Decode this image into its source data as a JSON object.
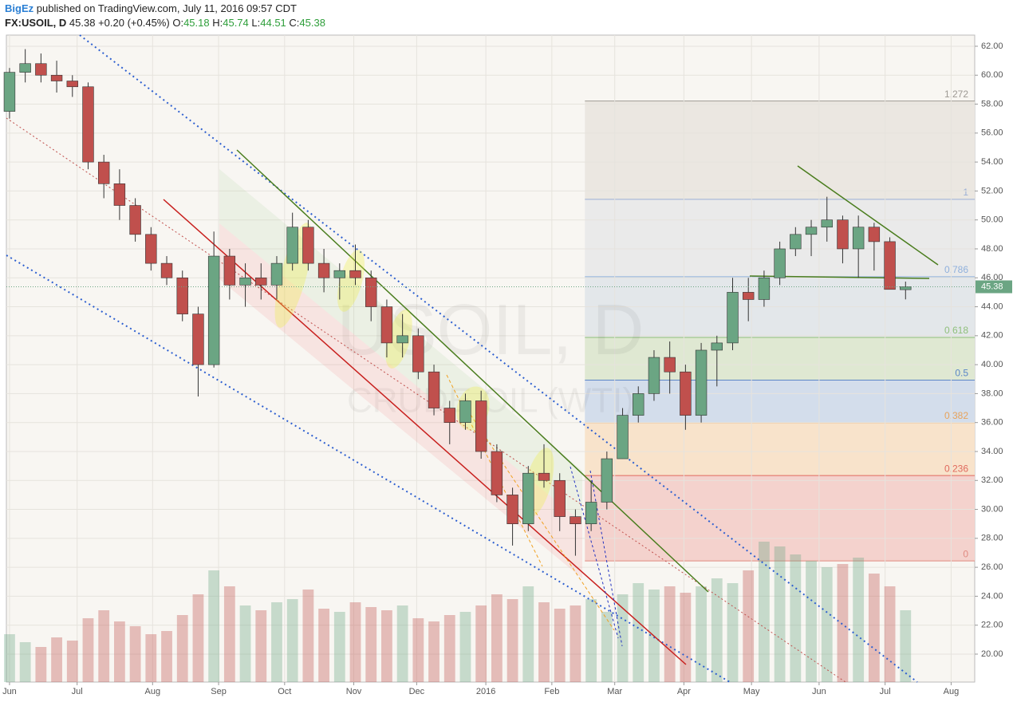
{
  "header": {
    "author": "BigEz",
    "published": "published on TradingView.com, July 11, 2016 09:57 CDT",
    "symbol": "FX:USOIL, D",
    "change": "+0.20 (+0.45%)",
    "o_label": "O:",
    "h_label": "H:",
    "l_label": "L:",
    "c_label": "C:"
  },
  "chart_data": {
    "type": "candlestick",
    "watermark": "USOIL, D",
    "watermark_sub": "CRUDE OIL (WTI)",
    "up_color": "#6ba583",
    "down_color": "#c0504d",
    "open": [
      57.5,
      60.2,
      60.8,
      60,
      59.6,
      59.2,
      54,
      52.5,
      51,
      49,
      47,
      46,
      43.5,
      40,
      47.5,
      45.5,
      46,
      45.5,
      47,
      49.5,
      47,
      46,
      46.5,
      46,
      44,
      41.5,
      42,
      39.5,
      37,
      36,
      37.5,
      34,
      31,
      29,
      32.5,
      32,
      29.5,
      29,
      30.5,
      33.5,
      36.5,
      38,
      40.5,
      39.5,
      36.5,
      41,
      41.5,
      45,
      44.5,
      46,
      48,
      49,
      49.5,
      50,
      48,
      49.5,
      48.5,
      45.18
    ],
    "high": [
      60.5,
      61.8,
      61.5,
      61,
      60,
      59.5,
      54.5,
      53.5,
      51.5,
      49.5,
      47.5,
      46.5,
      44,
      49.2,
      48,
      47,
      47,
      47.5,
      50.5,
      50,
      48,
      47,
      48.3,
      46.5,
      44.5,
      43.5,
      42.5,
      40,
      37.5,
      38,
      38.2,
      34.5,
      31.5,
      33,
      34.5,
      32.5,
      30,
      32,
      34,
      37,
      38.5,
      41,
      41.6,
      40,
      41.5,
      42,
      46,
      46,
      46.5,
      48.5,
      49.5,
      50,
      51.6,
      50.3,
      50.3,
      49.8,
      48.8,
      45.74
    ],
    "low": [
      57,
      59.5,
      59.5,
      58.8,
      58.5,
      53.5,
      51.5,
      50,
      48.5,
      46.5,
      45.5,
      43,
      37.8,
      39.8,
      44.5,
      44,
      44.5,
      44.5,
      46.5,
      46.5,
      45,
      44.5,
      45.5,
      43,
      40.5,
      40.5,
      39,
      36.5,
      34.5,
      35.5,
      33.5,
      30.5,
      27.5,
      28.5,
      31.5,
      28.5,
      26.8,
      28.5,
      30,
      33.5,
      36,
      37.5,
      38,
      35.5,
      36,
      38.5,
      41,
      43,
      44,
      45.5,
      47.5,
      47.5,
      48.5,
      47,
      46,
      46.5,
      45.2,
      44.51
    ],
    "close": [
      60.2,
      60.8,
      60,
      59.6,
      59.2,
      54,
      52.5,
      51,
      49,
      47,
      46,
      43.5,
      40,
      47.5,
      45.5,
      46,
      45.5,
      47,
      49.5,
      47,
      46,
      46.5,
      46,
      44,
      41.5,
      42,
      39.5,
      37,
      36,
      37.5,
      34,
      31,
      29,
      32.5,
      32,
      29.5,
      29,
      30.5,
      33.5,
      36.5,
      38,
      40.5,
      39.5,
      36.5,
      41,
      41.5,
      45,
      44.5,
      46,
      48,
      49,
      49.5,
      50,
      48,
      49.5,
      48.5,
      45.2,
      45.38
    ],
    "volume": [
      30,
      25,
      22,
      28,
      26,
      40,
      45,
      38,
      35,
      30,
      32,
      42,
      55,
      70,
      60,
      48,
      45,
      50,
      52,
      58,
      46,
      44,
      50,
      47,
      45,
      48,
      40,
      38,
      42,
      44,
      48,
      55,
      52,
      60,
      50,
      46,
      48,
      52,
      44,
      55,
      62,
      58,
      60,
      56,
      60,
      65,
      62,
      70,
      88,
      85,
      80,
      76,
      72,
      74,
      78,
      68,
      60,
      45
    ],
    "xlim": [
      -0.2,
      61.4
    ],
    "xticks": [
      {
        "value": 0,
        "label": "Jun"
      },
      {
        "value": 4.3,
        "label": "Jul"
      },
      {
        "value": 9.1,
        "label": "Aug"
      },
      {
        "value": 13.3,
        "label": "Sep"
      },
      {
        "value": 17.5,
        "label": "Oct"
      },
      {
        "value": 21.9,
        "label": "Nov"
      },
      {
        "value": 25.9,
        "label": "Dec"
      },
      {
        "value": 30.3,
        "label": "2016"
      },
      {
        "value": 34.5,
        "label": "Feb"
      },
      {
        "value": 38.5,
        "label": "Mar"
      },
      {
        "value": 42.9,
        "label": "Apr"
      },
      {
        "value": 47.2,
        "label": "May"
      },
      {
        "value": 51.5,
        "label": "Jun"
      },
      {
        "value": 55.7,
        "label": "Jul"
      },
      {
        "value": 59.9,
        "label": "Aug"
      }
    ],
    "ylim": [
      18.07,
      62.77
    ],
    "yticks": [
      {
        "value": 20,
        "label": "20.00"
      },
      {
        "value": 22,
        "label": "22.00"
      },
      {
        "value": 24,
        "label": "24.00"
      },
      {
        "value": 26,
        "label": "26.00"
      },
      {
        "value": 28,
        "label": "28.00"
      },
      {
        "value": 30,
        "label": "30.00"
      },
      {
        "value": 32,
        "label": "32.00"
      },
      {
        "value": 34,
        "label": "34.00"
      },
      {
        "value": 36,
        "label": "36.00"
      },
      {
        "value": 38,
        "label": "38.00"
      },
      {
        "value": 40,
        "label": "40.00"
      },
      {
        "value": 42,
        "label": "42.00"
      },
      {
        "value": 44,
        "label": "44.00"
      },
      {
        "value": 46,
        "label": "46.00"
      },
      {
        "value": 48,
        "label": "48.00"
      },
      {
        "value": 50,
        "label": "50.00"
      },
      {
        "value": 52,
        "label": "52.00"
      },
      {
        "value": 54,
        "label": "54.00"
      },
      {
        "value": 56,
        "label": "56.00"
      },
      {
        "value": 58,
        "label": "58.00"
      },
      {
        "value": 60,
        "label": "60.00"
      },
      {
        "value": 62,
        "label": "62.00"
      }
    ],
    "grid": true,
    "fib": {
      "low": 26.44,
      "high": 51.42,
      "start": 36.6,
      "levels": [
        1.272,
        1,
        0.786,
        0.618,
        0.5,
        0.382,
        0.236,
        0
      ],
      "colors": [
        "#9e9a94",
        "#9bb0d6",
        "#8fb0dc",
        "#8fbf7a",
        "#5b86c7",
        "#e8a35a",
        "#e06a5e",
        "#e08a80"
      ],
      "fills": [
        "#ebe7e1",
        "#eaeaea",
        "#e3e7ea",
        "#dfe8d2",
        "#d3ddeb",
        "#f8e3cb",
        "#f4d2cd"
      ]
    }
  }
}
